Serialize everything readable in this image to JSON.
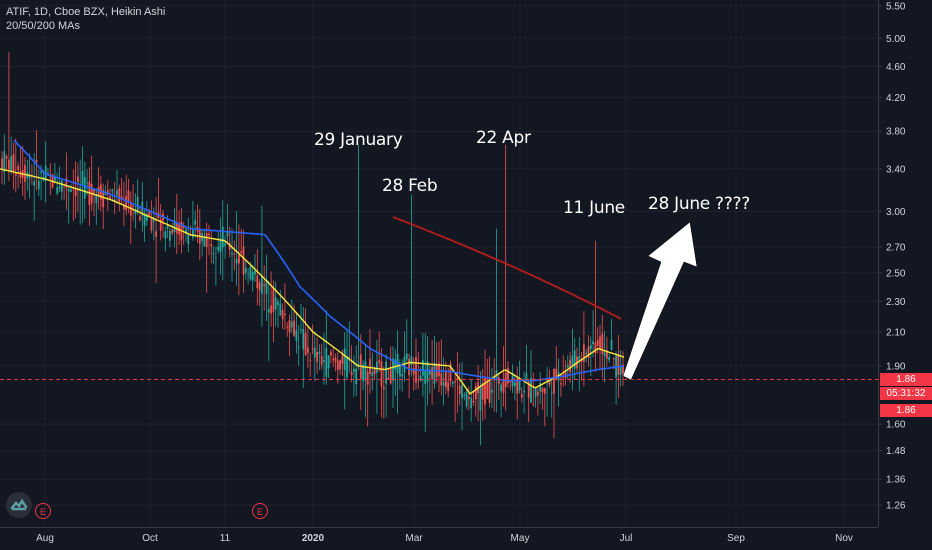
{
  "legend": {
    "line1": "ATIF, 1D, Cboe BZX, Heikin Ashi",
    "line2": "20/50/200 MAs"
  },
  "annotations": [
    {
      "text": "29 January"
    },
    {
      "text": "28 Feb"
    },
    {
      "text": "22 Apr"
    },
    {
      "text": "11 June"
    },
    {
      "text": "28 June ????"
    }
  ],
  "price_tags": {
    "last": "1.86",
    "countdown": "05:31:32",
    "ma": "1.86"
  },
  "badges": [
    "E",
    "E"
  ],
  "colors": {
    "background": "#131722",
    "up": "#26a69a",
    "down": "#ef5350",
    "ma20": "#ffeb3b",
    "ma50": "#2962ff",
    "ma200": "#b71c1c",
    "price_line": "#f23645"
  },
  "chart_data": {
    "type": "candlestick",
    "y_scale": "log",
    "ylim": [
      1.22,
      5.5
    ],
    "y_ticks": [
      "5.50",
      "5.00",
      "4.60",
      "4.20",
      "3.80",
      "3.40",
      "3.00",
      "2.70",
      "2.50",
      "2.30",
      "2.10",
      "1.90",
      "1.60",
      "1.48",
      "1.36",
      "1.26"
    ],
    "x_ticks": [
      "Aug",
      "Oct",
      "11",
      "2020",
      "Mar",
      "May",
      "Jul",
      "Sep",
      "Nov"
    ],
    "x_ticks_bold": [
      "2020"
    ],
    "series": [
      {
        "name": "",
        "type": "candles",
        "dates": [
          "2019-07-15",
          "2019-08-01",
          "2019-09-01",
          "2019-10-01",
          "2019-11-01",
          "2019-12-01",
          "2020-01-01",
          "2020-01-29",
          "2020-02-15",
          "2020-02-28",
          "2020-03-15",
          "2020-04-01",
          "2020-04-22",
          "2020-05-15",
          "2020-06-01",
          "2020-06-11",
          "2020-06-29"
        ],
        "close": [
          3.5,
          3.3,
          3.15,
          2.95,
          2.8,
          2.75,
          1.95,
          1.9,
          1.85,
          1.9,
          1.85,
          1.7,
          1.85,
          1.75,
          1.85,
          2.05,
          1.86
        ]
      },
      {
        "name": "",
        "type": "ma",
        "period": 20,
        "values": [
          3.4,
          3.3,
          3.1,
          2.95,
          2.8,
          2.75,
          2.1,
          1.9,
          1.88,
          1.92,
          1.9,
          1.75,
          1.88,
          1.78,
          1.85,
          2.0,
          1.95
        ]
      },
      {
        "name": "",
        "type": "ma",
        "period": 50,
        "values": [
          3.7,
          3.35,
          3.15,
          3.0,
          2.85,
          2.8,
          2.4,
          2.2,
          2.0,
          1.88,
          1.87,
          1.85,
          1.82,
          1.82,
          1.84,
          1.88,
          1.9
        ]
      },
      {
        "name": "",
        "type": "ma",
        "period": 200,
        "dates": [
          "2020-03-01",
          "2020-06-29"
        ],
        "values": [
          2.95,
          2.18
        ]
      }
    ],
    "projection_arrow": {
      "from": [
        "2020-06-29",
        1.9
      ],
      "to": [
        "2020-07-30",
        2.95
      ]
    },
    "horizontal_line": 1.86
  }
}
